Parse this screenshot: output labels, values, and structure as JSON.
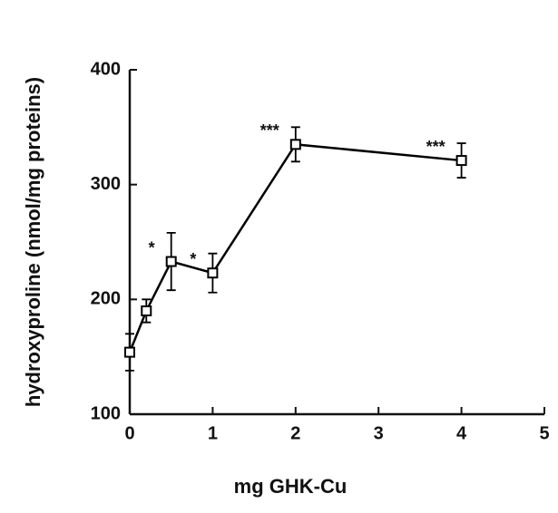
{
  "chart_data": {
    "type": "line",
    "xlabel": "mg GHK-Cu",
    "ylabel": "hydroxyproline (nmol/mg proteins)",
    "x": [
      0,
      0.2,
      0.5,
      1,
      2,
      4
    ],
    "series": [
      {
        "color": "#000000",
        "values": [
          154,
          190,
          233,
          223,
          335,
          321
        ],
        "errors": [
          16,
          10,
          25,
          17,
          15,
          15
        ]
      }
    ],
    "annotations": [
      {
        "text": "*",
        "x": 0.5
      },
      {
        "text": "*",
        "x": 1
      },
      {
        "text": "***",
        "x": 2
      },
      {
        "text": "***",
        "x": 4
      }
    ],
    "xlim": [
      0,
      5
    ],
    "xticks": [
      0,
      1,
      2,
      3,
      4,
      5
    ],
    "ylim": [
      100,
      400
    ],
    "yticks": [
      100,
      200,
      300,
      400
    ],
    "grid": false
  }
}
